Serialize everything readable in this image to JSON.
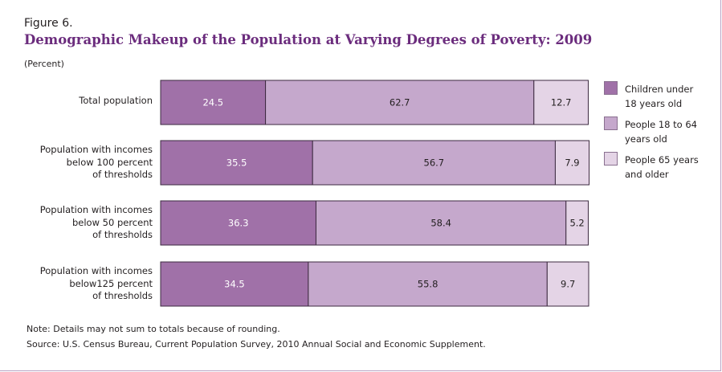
{
  "figure_label": "Figure 6.",
  "title": "Demographic Makeup of the Population at Varying Degrees of Poverty: 2009",
  "unit_label": "(Percent)",
  "notes": {
    "note": "Note:  Details may not sum to totals because of rounding.",
    "source": "Source: U.S. Census Bureau, Current Population Survey, 2010 Annual Social and Economic Supplement."
  },
  "legend": [
    {
      "lines": [
        "Children under",
        "18 years old"
      ]
    },
    {
      "lines": [
        "People 18 to 64",
        "years old"
      ]
    },
    {
      "lines": [
        "People 65 years",
        "and older"
      ]
    }
  ],
  "chart_data": {
    "type": "bar",
    "stacked": true,
    "orientation": "horizontal",
    "categories": [
      [
        "Total population"
      ],
      [
        "Population with incomes",
        "below 100 percent",
        "of thresholds"
      ],
      [
        "Population with incomes",
        "below 50 percent",
        "of thresholds"
      ],
      [
        "Population with incomes",
        "below125 percent",
        "of thresholds"
      ]
    ],
    "series": [
      {
        "name": "Children under 18 years old",
        "values": [
          24.5,
          35.5,
          36.3,
          34.5
        ],
        "color": "#a071a8"
      },
      {
        "name": "People 18 to 64 years old",
        "values": [
          62.7,
          56.7,
          58.4,
          55.8
        ],
        "color": "#c5a8cc"
      },
      {
        "name": "People 65 years and older",
        "values": [
          12.7,
          7.9,
          5.2,
          9.7
        ],
        "color": "#e4d4e6"
      }
    ],
    "ylabel": "(Percent)",
    "xlim": [
      0,
      100
    ],
    "grid": false,
    "legend_position": "right"
  }
}
